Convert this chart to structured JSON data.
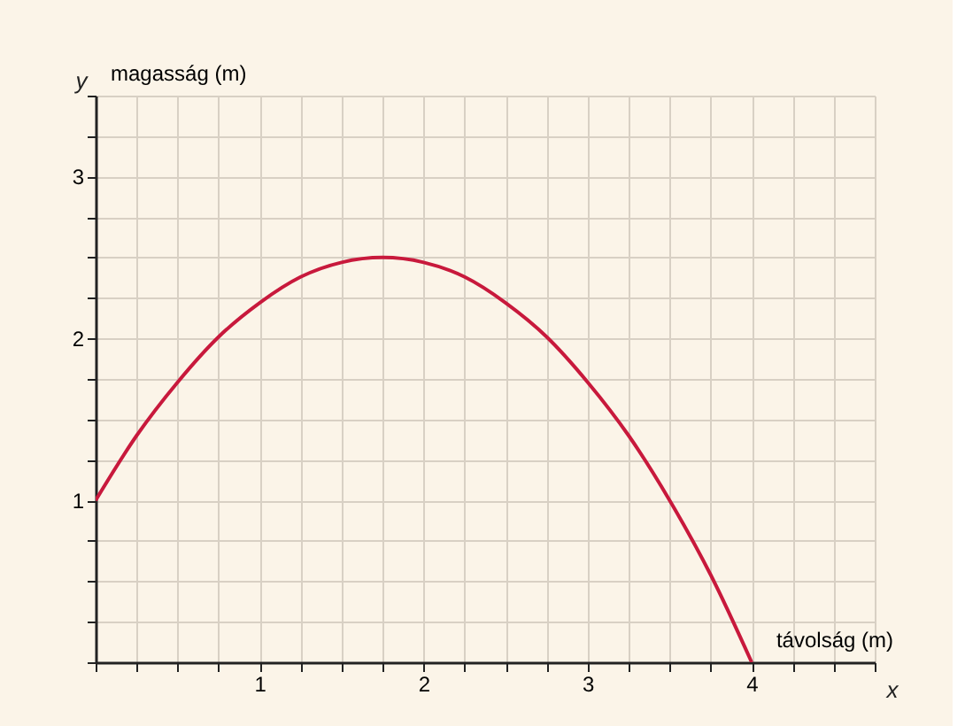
{
  "chart_data": {
    "type": "line",
    "xlabel": "távolság (m)",
    "ylabel": "magasság (m)",
    "annotations": [
      "x",
      "y"
    ],
    "x": [
      0,
      0.25,
      0.5,
      0.75,
      1,
      1.25,
      1.5,
      1.75,
      2,
      2.25,
      2.5,
      2.75,
      3,
      3.25,
      3.5,
      3.75,
      4
    ],
    "series": [
      {
        "color": "#c8193c",
        "values": [
          1.0,
          1.4,
          1.73,
          2.01,
          2.22,
          2.38,
          2.47,
          2.5,
          2.47,
          2.38,
          2.22,
          2.01,
          1.73,
          1.4,
          1.0,
          0.54,
          0.0
        ]
      }
    ],
    "xlim": [
      0,
      4.75
    ],
    "ylim": [
      0,
      3.5
    ],
    "xticks": [
      {
        "value": 0,
        "label": null
      },
      {
        "value": 0.25,
        "label": null
      },
      {
        "value": 0.5,
        "label": null
      },
      {
        "value": 0.75,
        "label": null
      },
      1,
      {
        "value": 1.25,
        "label": null
      },
      {
        "value": 1.5,
        "label": null
      },
      {
        "value": 1.75,
        "label": null
      },
      2,
      {
        "value": 2.25,
        "label": null
      },
      {
        "value": 2.5,
        "label": null
      },
      {
        "value": 2.75,
        "label": null
      },
      3,
      {
        "value": 3.25,
        "label": null
      },
      {
        "value": 3.5,
        "label": null
      },
      {
        "value": 3.75,
        "label": null
      },
      4,
      {
        "value": 4.25,
        "label": null
      },
      {
        "value": 4.5,
        "label": null
      },
      {
        "value": 4.75,
        "label": null
      }
    ],
    "yticks": [
      {
        "value": 0,
        "label": null
      },
      {
        "value": 0.25,
        "label": null
      },
      {
        "value": 0.5,
        "label": null
      },
      {
        "value": 0.75,
        "label": null
      },
      1,
      {
        "value": 1.25,
        "label": null
      },
      {
        "value": 1.5,
        "label": null
      },
      {
        "value": 1.75,
        "label": null
      },
      2,
      {
        "value": 2.25,
        "label": null
      },
      {
        "value": 2.5,
        "label": null
      },
      {
        "value": 2.75,
        "label": null
      },
      3,
      {
        "value": 3.25,
        "label": null
      },
      {
        "value": 3.5,
        "label": null
      }
    ],
    "grid": true,
    "marker": "none",
    "line_style": "solid"
  }
}
